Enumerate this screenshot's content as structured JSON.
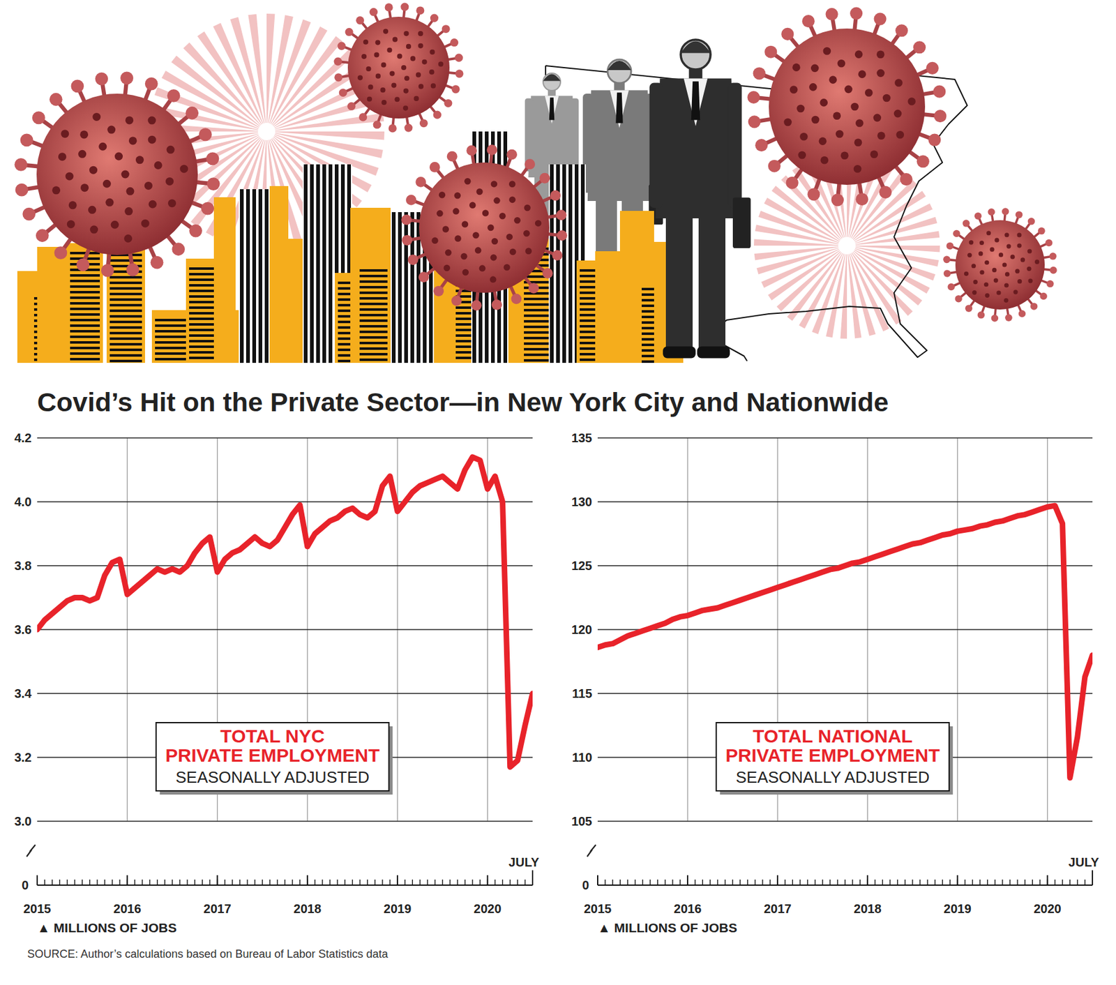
{
  "title": "Covid’s Hit on the Private Sector—in New York City and Nationwide",
  "source": "SOURCE: Author’s calculations based on Bureau of Labor Statistics data",
  "chart_data": [
    {
      "type": "line",
      "subtitle": "SEASONALLY ADJUSTED",
      "y_label": "▲ MILLIONS OF JOBS",
      "x": [
        "2015-01",
        "2015-02",
        "2015-03",
        "2015-04",
        "2015-05",
        "2015-06",
        "2015-07",
        "2015-08",
        "2015-09",
        "2015-10",
        "2015-11",
        "2015-12",
        "2016-01",
        "2016-02",
        "2016-03",
        "2016-04",
        "2016-05",
        "2016-06",
        "2016-07",
        "2016-08",
        "2016-09",
        "2016-10",
        "2016-11",
        "2016-12",
        "2017-01",
        "2017-02",
        "2017-03",
        "2017-04",
        "2017-05",
        "2017-06",
        "2017-07",
        "2017-08",
        "2017-09",
        "2017-10",
        "2017-11",
        "2017-12",
        "2018-01",
        "2018-02",
        "2018-03",
        "2018-04",
        "2018-05",
        "2018-06",
        "2018-07",
        "2018-08",
        "2018-09",
        "2018-10",
        "2018-11",
        "2018-12",
        "2019-01",
        "2019-02",
        "2019-03",
        "2019-04",
        "2019-05",
        "2019-06",
        "2019-07",
        "2019-08",
        "2019-09",
        "2019-10",
        "2019-11",
        "2019-12",
        "2020-01",
        "2020-02",
        "2020-03",
        "2020-04",
        "2020-05",
        "2020-06",
        "2020-07"
      ],
      "series": [
        {
          "name": "TOTAL NYC PRIVATE EMPLOYMENT",
          "color": "#e8232a",
          "values": [
            3.6,
            3.63,
            3.65,
            3.67,
            3.69,
            3.7,
            3.7,
            3.69,
            3.7,
            3.77,
            3.81,
            3.82,
            3.71,
            3.73,
            3.75,
            3.77,
            3.79,
            3.78,
            3.79,
            3.78,
            3.8,
            3.84,
            3.87,
            3.89,
            3.78,
            3.82,
            3.84,
            3.85,
            3.87,
            3.89,
            3.87,
            3.86,
            3.88,
            3.92,
            3.96,
            3.99,
            3.86,
            3.9,
            3.92,
            3.94,
            3.95,
            3.97,
            3.98,
            3.96,
            3.95,
            3.97,
            4.05,
            4.08,
            3.97,
            4.0,
            4.03,
            4.05,
            4.06,
            4.07,
            4.08,
            4.06,
            4.04,
            4.1,
            4.14,
            4.13,
            4.04,
            4.08,
            4.0,
            3.17,
            3.19,
            3.3,
            3.4
          ]
        }
      ],
      "xlim": [
        "2015-01",
        "2020-07"
      ],
      "xticks": [
        {
          "value": "2015-01",
          "label": "2015"
        },
        {
          "value": "2016-01",
          "label": "2016"
        },
        {
          "value": "2017-01",
          "label": "2017"
        },
        {
          "value": "2018-01",
          "label": "2018"
        },
        {
          "value": "2019-01",
          "label": "2019"
        },
        {
          "value": "2020-01",
          "label": "2020"
        },
        {
          "value": "2020-07",
          "label": "JULY"
        }
      ],
      "ylim": [
        3.0,
        4.2
      ],
      "yticks": [
        {
          "value": 3,
          "label": "3.0"
        },
        3.2,
        3.4,
        3.6,
        3.8,
        {
          "value": 4,
          "label": "4.0"
        },
        4.2
      ],
      "axis_origin": 0,
      "grid": true
    },
    {
      "type": "line",
      "subtitle": "SEASONALLY ADJUSTED",
      "y_label": "▲ MILLIONS OF JOBS",
      "x": [
        "2015-01",
        "2015-02",
        "2015-03",
        "2015-04",
        "2015-05",
        "2015-06",
        "2015-07",
        "2015-08",
        "2015-09",
        "2015-10",
        "2015-11",
        "2015-12",
        "2016-01",
        "2016-02",
        "2016-03",
        "2016-04",
        "2016-05",
        "2016-06",
        "2016-07",
        "2016-08",
        "2016-09",
        "2016-10",
        "2016-11",
        "2016-12",
        "2017-01",
        "2017-02",
        "2017-03",
        "2017-04",
        "2017-05",
        "2017-06",
        "2017-07",
        "2017-08",
        "2017-09",
        "2017-10",
        "2017-11",
        "2017-12",
        "2018-01",
        "2018-02",
        "2018-03",
        "2018-04",
        "2018-05",
        "2018-06",
        "2018-07",
        "2018-08",
        "2018-09",
        "2018-10",
        "2018-11",
        "2018-12",
        "2019-01",
        "2019-02",
        "2019-03",
        "2019-04",
        "2019-05",
        "2019-06",
        "2019-07",
        "2019-08",
        "2019-09",
        "2019-10",
        "2019-11",
        "2019-12",
        "2020-01",
        "2020-02",
        "2020-03",
        "2020-04",
        "2020-05",
        "2020-06",
        "2020-07"
      ],
      "series": [
        {
          "name": "TOTAL NATIONAL PRIVATE EMPLOYMENT",
          "color": "#e8232a",
          "values": [
            118.6,
            118.8,
            118.9,
            119.2,
            119.5,
            119.7,
            119.9,
            120.1,
            120.3,
            120.5,
            120.8,
            121.0,
            121.1,
            121.3,
            121.5,
            121.6,
            121.7,
            121.9,
            122.1,
            122.3,
            122.5,
            122.7,
            122.9,
            123.1,
            123.3,
            123.5,
            123.7,
            123.9,
            124.1,
            124.3,
            124.5,
            124.7,
            124.8,
            125.0,
            125.2,
            125.3,
            125.5,
            125.7,
            125.9,
            126.1,
            126.3,
            126.5,
            126.7,
            126.8,
            127.0,
            127.2,
            127.4,
            127.5,
            127.7,
            127.8,
            127.9,
            128.1,
            128.2,
            128.4,
            128.5,
            128.7,
            128.9,
            129.0,
            129.2,
            129.4,
            129.6,
            129.7,
            128.3,
            108.4,
            111.6,
            116.3,
            118.0
          ]
        }
      ],
      "xlim": [
        "2015-01",
        "2020-07"
      ],
      "xticks": [
        {
          "value": "2015-01",
          "label": "2015"
        },
        {
          "value": "2016-01",
          "label": "2016"
        },
        {
          "value": "2017-01",
          "label": "2017"
        },
        {
          "value": "2018-01",
          "label": "2018"
        },
        {
          "value": "2019-01",
          "label": "2019"
        },
        {
          "value": "2020-01",
          "label": "2020"
        },
        {
          "value": "2020-07",
          "label": "JULY"
        }
      ],
      "ylim": [
        105,
        135
      ],
      "yticks": [
        105,
        110,
        115,
        120,
        125,
        130,
        135
      ],
      "axis_origin": 0,
      "grid": true
    }
  ]
}
